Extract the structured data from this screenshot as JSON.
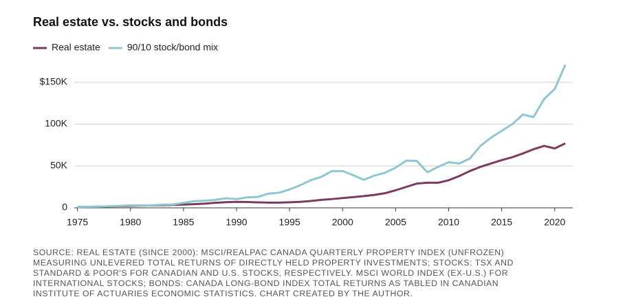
{
  "chart_data": {
    "type": "line",
    "title": "Real estate vs. stocks and bonds",
    "x": [
      1975,
      1976,
      1977,
      1978,
      1979,
      1980,
      1981,
      1982,
      1983,
      1984,
      1985,
      1986,
      1987,
      1988,
      1989,
      1990,
      1991,
      1992,
      1993,
      1994,
      1995,
      1996,
      1997,
      1998,
      1999,
      2000,
      2001,
      2002,
      2003,
      2004,
      2005,
      2006,
      2007,
      2008,
      2009,
      2010,
      2011,
      2012,
      2013,
      2014,
      2015,
      2016,
      2017,
      2018,
      2019,
      2020,
      2021
    ],
    "series": [
      {
        "name": "Real estate",
        "color": "#7b3a5e",
        "values": [
          1000,
          1200,
          1400,
          1700,
          2000,
          2400,
          2700,
          2900,
          3200,
          3500,
          3900,
          4400,
          5000,
          6000,
          6800,
          7200,
          7000,
          6600,
          6200,
          6300,
          6700,
          7200,
          8200,
          9500,
          10500,
          11700,
          12800,
          14000,
          15500,
          17500,
          21000,
          25000,
          29000,
          30000,
          30000,
          33000,
          38000,
          44000,
          49000,
          53000,
          57000,
          60500,
          65000,
          70000,
          74000,
          71000,
          77000
        ]
      },
      {
        "name": "90/10 stock/bond mix",
        "color": "#8fc7d0",
        "values": [
          1000,
          1200,
          1400,
          1800,
          2400,
          3000,
          2800,
          3000,
          3800,
          4000,
          6000,
          8000,
          8500,
          9500,
          11500,
          10500,
          12500,
          13000,
          17000,
          18000,
          22000,
          27000,
          33000,
          37000,
          44000,
          44000,
          39000,
          33500,
          38500,
          42000,
          48000,
          56500,
          56000,
          42500,
          49000,
          54500,
          53000,
          59000,
          74000,
          84000,
          92000,
          100000,
          111500,
          108500,
          130000,
          142000,
          171000
        ]
      }
    ],
    "xlim": [
      1974.7,
      2021.7
    ],
    "xticks": [
      1975,
      1980,
      1985,
      1990,
      1995,
      2000,
      2005,
      2010,
      2015,
      2020
    ],
    "ylim": [
      0,
      175000
    ],
    "yticks": [
      0,
      {
        "value": 50000,
        "label": "50K"
      },
      {
        "value": 100000,
        "label": "100K"
      },
      {
        "value": 150000,
        "label": "$150K"
      }
    ],
    "grid": true,
    "legend": "top-left",
    "note": "SOURCE: REAL ESTATE (SINCE 2000): MSCI/REALPAC CANADA QUARTERLY PROPERTY INDEX (UNFROZEN) MEASURING UNLEVERED TOTAL RETURNS OF DIRECTLY HELD PROPERTY INVESTMENTS; STOCKS: TSX AND STANDARD & POOR'S FOR CANADIAN AND U.S. STOCKS, RESPECTIVELY. MSCI WORLD INDEX (EX-U.S.) FOR INTERNATIONAL STOCKS; BONDS: CANADA LONG-BOND INDEX TOTAL RETURNS AS TABLED IN CANADIAN INSTITUTE OF ACTUARIES ECONOMIC STATISTICS. CHART CREATED BY THE AUTHOR."
  }
}
